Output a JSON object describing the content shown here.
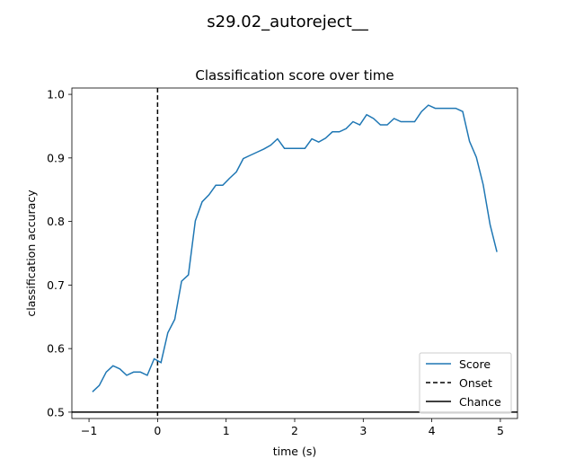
{
  "figure": {
    "suptitle": "s29.02_autoreject__"
  },
  "chart_data": {
    "type": "line",
    "title": "Classification score over time",
    "xlabel": "time (s)",
    "ylabel": "classification accuracy",
    "xlim": [
      -1.25,
      5.25
    ],
    "ylim": [
      0.49,
      1.01
    ],
    "xticks": [
      -1,
      0,
      1,
      2,
      3,
      4,
      5
    ],
    "xtick_labels": [
      "−1",
      "0",
      "1",
      "2",
      "3",
      "4",
      "5"
    ],
    "yticks": [
      0.5,
      0.6,
      0.7,
      0.8,
      0.9,
      1.0
    ],
    "ytick_labels": [
      "0.5",
      "0.6",
      "0.7",
      "0.8",
      "0.9",
      "1.0"
    ],
    "grid": false,
    "legend_position": "lower-right",
    "series": [
      {
        "name": "Score",
        "color": "#1f77b4",
        "style": "solid",
        "x": [
          -0.95,
          -0.85,
          -0.75,
          -0.65,
          -0.55,
          -0.45,
          -0.35,
          -0.25,
          -0.15,
          -0.05,
          0.05,
          0.15,
          0.25,
          0.35,
          0.45,
          0.55,
          0.65,
          0.75,
          0.85,
          0.95,
          1.05,
          1.15,
          1.25,
          1.35,
          1.45,
          1.55,
          1.65,
          1.75,
          1.85,
          1.95,
          2.05,
          2.15,
          2.25,
          2.35,
          2.45,
          2.55,
          2.65,
          2.75,
          2.85,
          2.95,
          3.05,
          3.15,
          3.25,
          3.35,
          3.45,
          3.55,
          3.65,
          3.75,
          3.85,
          3.95,
          4.05,
          4.15,
          4.25,
          4.35,
          4.45,
          4.55,
          4.65,
          4.75,
          4.85,
          4.95
        ],
        "y": [
          0.532,
          0.542,
          0.563,
          0.573,
          0.568,
          0.558,
          0.563,
          0.563,
          0.558,
          0.584,
          0.578,
          0.625,
          0.646,
          0.706,
          0.716,
          0.801,
          0.831,
          0.842,
          0.857,
          0.857,
          0.868,
          0.878,
          0.899,
          0.904,
          0.909,
          0.914,
          0.92,
          0.93,
          0.915,
          0.915,
          0.915,
          0.915,
          0.93,
          0.925,
          0.931,
          0.941,
          0.941,
          0.946,
          0.957,
          0.952,
          0.968,
          0.962,
          0.952,
          0.952,
          0.962,
          0.957,
          0.957,
          0.957,
          0.973,
          0.983,
          0.978,
          0.978,
          0.978,
          0.978,
          0.973,
          0.926,
          0.901,
          0.858,
          0.795,
          0.752
        ]
      }
    ],
    "onset": {
      "name": "Onset",
      "x": 0,
      "color": "#000000",
      "style": "dashed"
    },
    "chance": {
      "name": "Chance",
      "y": 0.5,
      "color": "#000000",
      "style": "solid"
    }
  }
}
